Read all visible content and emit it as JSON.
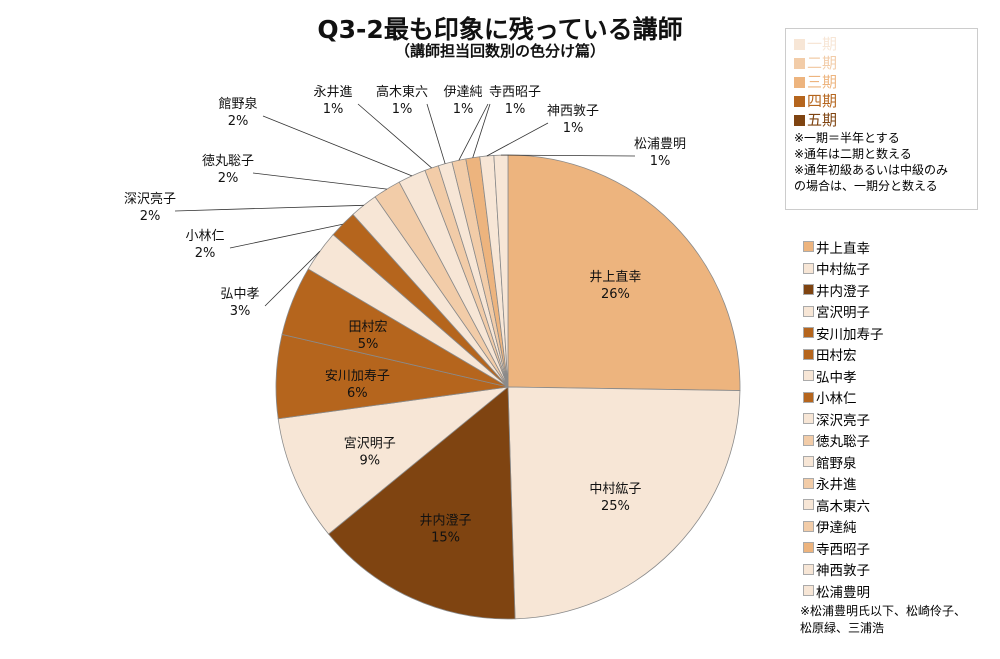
{
  "chart_data": {
    "type": "pie",
    "title": "Q3-2最も印象に残っている講師",
    "subtitle": "（講師担当回数別の色分け篇）",
    "slices": [
      {
        "label": "井上直幸",
        "value": 26,
        "period": "三期"
      },
      {
        "label": "中村紘子",
        "value": 25,
        "period": "一期"
      },
      {
        "label": "井内澄子",
        "value": 15,
        "period": "五期"
      },
      {
        "label": "宮沢明子",
        "value": 9,
        "period": "一期"
      },
      {
        "label": "安川加寿子",
        "value": 6,
        "period": "四期"
      },
      {
        "label": "田村宏",
        "value": 5,
        "period": "四期"
      },
      {
        "label": "弘中孝",
        "value": 3,
        "period": "一期"
      },
      {
        "label": "小林仁",
        "value": 2,
        "period": "四期"
      },
      {
        "label": "深沢亮子",
        "value": 2,
        "period": "一期"
      },
      {
        "label": "徳丸聡子",
        "value": 2,
        "period": "二期"
      },
      {
        "label": "館野泉",
        "value": 2,
        "period": "一期"
      },
      {
        "label": "永井進",
        "value": 1,
        "period": "二期"
      },
      {
        "label": "高木東六",
        "value": 1,
        "period": "一期"
      },
      {
        "label": "伊達純",
        "value": 1,
        "period": "二期"
      },
      {
        "label": "寺西昭子",
        "value": 1,
        "period": "三期"
      },
      {
        "label": "神西敦子",
        "value": 1,
        "period": "一期"
      },
      {
        "label": "松浦豊明",
        "value": 1,
        "period": "一期"
      }
    ],
    "period_colors": {
      "一期": "#F7E6D6",
      "二期": "#F2CCA8",
      "三期": "#EDB47E",
      "四期": "#B5651D",
      "五期": "#7F4411"
    },
    "legend_placement": "right"
  },
  "notes": {
    "periods": [
      "一期",
      "二期",
      "三期",
      "四期",
      "五期"
    ],
    "lines": [
      "※一期＝半年とする",
      "※通年は二期と数える",
      "※通年初級あるいは中級のみ",
      "の場合は、一期分と数える"
    ]
  },
  "footnote": [
    "※松浦豊明氏以下、松崎伶子、",
    "松原緑、三浦浩"
  ]
}
